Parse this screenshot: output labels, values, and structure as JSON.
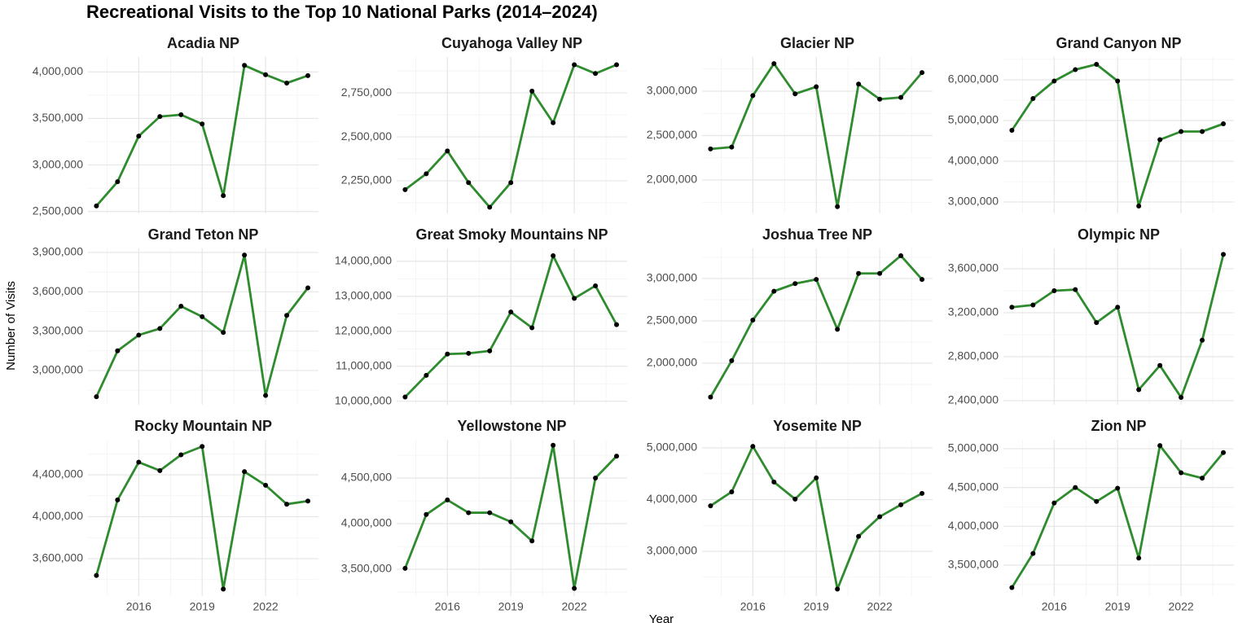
{
  "title": "Recreational Visits to the Top 10 National Parks (2014–2024)",
  "x_label": "Year",
  "y_label": "Number of Visits",
  "chart_data": [
    {
      "type": "line",
      "title": "Acadia NP",
      "x": [
        2014,
        2015,
        2016,
        2017,
        2018,
        2019,
        2020,
        2021,
        2022,
        2023,
        2024
      ],
      "values": [
        2560000,
        2820000,
        3310000,
        3520000,
        3540000,
        3440000,
        2670000,
        4070000,
        3970000,
        3880000,
        3960000
      ],
      "color": "#2e8b2e",
      "point_color": "#000000",
      "xlim": [
        2013.6,
        2024.5
      ],
      "xticks": [
        2016,
        2019,
        2022
      ],
      "ylim": [
        2480000,
        4160000
      ],
      "yticks": [
        {
          "value": 2500000,
          "label": "2,500,000"
        },
        {
          "value": 3000000,
          "label": "3,000,000"
        },
        {
          "value": 3500000,
          "label": "3,500,000"
        },
        {
          "value": 4000000,
          "label": "4,000,000"
        }
      ],
      "grid": true
    },
    {
      "type": "line",
      "title": "Cuyahoga Valley NP",
      "x": [
        2014,
        2015,
        2016,
        2017,
        2018,
        2019,
        2020,
        2021,
        2022,
        2023,
        2024
      ],
      "values": [
        2200000,
        2290000,
        2420000,
        2240000,
        2100000,
        2240000,
        2760000,
        2580000,
        2910000,
        2860000,
        2910000
      ],
      "color": "#2e8b2e",
      "point_color": "#000000",
      "xlim": [
        2013.6,
        2024.5
      ],
      "xticks": [
        2016,
        2019,
        2022
      ],
      "ylim": [
        2065000,
        2954000
      ],
      "yticks": [
        {
          "value": 2250000,
          "label": "2,250,000"
        },
        {
          "value": 2500000,
          "label": "2,500,000"
        },
        {
          "value": 2750000,
          "label": "2,750,000"
        }
      ],
      "grid": true
    },
    {
      "type": "line",
      "title": "Glacier NP",
      "x": [
        2014,
        2015,
        2016,
        2017,
        2018,
        2019,
        2020,
        2021,
        2022,
        2023,
        2024
      ],
      "values": [
        2350000,
        2370000,
        2950000,
        3310000,
        2970000,
        3050000,
        1700000,
        3080000,
        2910000,
        2930000,
        3210000
      ],
      "color": "#2e8b2e",
      "point_color": "#000000",
      "xlim": [
        2013.6,
        2024.5
      ],
      "xticks": [
        2016,
        2019,
        2022
      ],
      "ylim": [
        1624000,
        3385000
      ],
      "yticks": [
        {
          "value": 2000000,
          "label": "2,000,000"
        },
        {
          "value": 2500000,
          "label": "2,500,000"
        },
        {
          "value": 3000000,
          "label": "3,000,000"
        }
      ],
      "grid": true
    },
    {
      "type": "line",
      "title": "Grand Canyon NP",
      "x": [
        2014,
        2015,
        2016,
        2017,
        2018,
        2019,
        2020,
        2021,
        2022,
        2023,
        2024
      ],
      "values": [
        4760000,
        5540000,
        5970000,
        6250000,
        6380000,
        5970000,
        2900000,
        4530000,
        4730000,
        4730000,
        4920000
      ],
      "color": "#2e8b2e",
      "point_color": "#000000",
      "xlim": [
        2013.6,
        2024.5
      ],
      "xticks": [
        2016,
        2019,
        2022
      ],
      "ylim": [
        2720000,
        6560000
      ],
      "yticks": [
        {
          "value": 3000000,
          "label": "3,000,000"
        },
        {
          "value": 4000000,
          "label": "4,000,000"
        },
        {
          "value": 5000000,
          "label": "5,000,000"
        },
        {
          "value": 6000000,
          "label": "6,000,000"
        }
      ],
      "grid": true
    },
    {
      "type": "line",
      "title": "Grand Teton NP",
      "x": [
        2014,
        2015,
        2016,
        2017,
        2018,
        2019,
        2020,
        2021,
        2022,
        2023,
        2024
      ],
      "values": [
        2800000,
        3150000,
        3270000,
        3320000,
        3490000,
        3410000,
        3290000,
        3880000,
        2810000,
        3420000,
        3630000
      ],
      "color": "#2e8b2e",
      "point_color": "#000000",
      "xlim": [
        2013.6,
        2024.5
      ],
      "xticks": [
        2016,
        2019,
        2022
      ],
      "ylim": [
        2739000,
        3931000
      ],
      "yticks": [
        {
          "value": 3000000,
          "label": "3,000,000"
        },
        {
          "value": 3300000,
          "label": "3,300,000"
        },
        {
          "value": 3600000,
          "label": "3,600,000"
        },
        {
          "value": 3900000,
          "label": "3,900,000"
        }
      ],
      "grid": true
    },
    {
      "type": "line",
      "title": "Great Smoky Mountains NP",
      "x": [
        2014,
        2015,
        2016,
        2017,
        2018,
        2019,
        2020,
        2021,
        2022,
        2023,
        2024
      ],
      "values": [
        10120000,
        10740000,
        11350000,
        11370000,
        11440000,
        12550000,
        12100000,
        14160000,
        12940000,
        13300000,
        12190000
      ],
      "color": "#2e8b2e",
      "point_color": "#000000",
      "xlim": [
        2013.6,
        2024.5
      ],
      "xticks": [
        2016,
        2019,
        2022
      ],
      "ylim": [
        9900000,
        14370000
      ],
      "yticks": [
        {
          "value": 10000000,
          "label": "10,000,000"
        },
        {
          "value": 11000000,
          "label": "11,000,000"
        },
        {
          "value": 12000000,
          "label": "12,000,000"
        },
        {
          "value": 13000000,
          "label": "13,000,000"
        },
        {
          "value": 14000000,
          "label": "14,000,000"
        }
      ],
      "grid": true
    },
    {
      "type": "line",
      "title": "Joshua Tree NP",
      "x": [
        2014,
        2015,
        2016,
        2017,
        2018,
        2019,
        2020,
        2021,
        2022,
        2023,
        2024
      ],
      "values": [
        1600000,
        2030000,
        2510000,
        2850000,
        2940000,
        2990000,
        2400000,
        3060000,
        3060000,
        3270000,
        2990000
      ],
      "color": "#2e8b2e",
      "point_color": "#000000",
      "xlim": [
        2013.6,
        2024.5
      ],
      "xticks": [
        2016,
        2019,
        2022
      ],
      "ylim": [
        1510000,
        3356000
      ],
      "yticks": [
        {
          "value": 2000000,
          "label": "2,000,000"
        },
        {
          "value": 2500000,
          "label": "2,500,000"
        },
        {
          "value": 3000000,
          "label": "3,000,000"
        }
      ],
      "grid": true
    },
    {
      "type": "line",
      "title": "Olympic NP",
      "x": [
        2014,
        2015,
        2016,
        2017,
        2018,
        2019,
        2020,
        2021,
        2022,
        2023,
        2024
      ],
      "values": [
        3250000,
        3270000,
        3400000,
        3410000,
        3110000,
        3250000,
        2500000,
        2720000,
        2430000,
        2950000,
        3730000
      ],
      "color": "#2e8b2e",
      "point_color": "#000000",
      "xlim": [
        2013.6,
        2024.5
      ],
      "xticks": [
        2016,
        2019,
        2022
      ],
      "ylim": [
        2363000,
        3785000
      ],
      "yticks": [
        {
          "value": 2400000,
          "label": "2,400,000"
        },
        {
          "value": 2800000,
          "label": "2,800,000"
        },
        {
          "value": 3200000,
          "label": "3,200,000"
        },
        {
          "value": 3600000,
          "label": "3,600,000"
        }
      ],
      "grid": true
    },
    {
      "type": "line",
      "title": "Rocky Mountain NP",
      "x": [
        2014,
        2015,
        2016,
        2017,
        2018,
        2019,
        2020,
        2021,
        2022,
        2023,
        2024
      ],
      "values": [
        3440000,
        4160000,
        4520000,
        4440000,
        4590000,
        4670000,
        3310000,
        4430000,
        4300000,
        4120000,
        4150000
      ],
      "color": "#2e8b2e",
      "point_color": "#000000",
      "xlim": [
        2013.6,
        2024.5
      ],
      "xticks": [
        2016,
        2019,
        2022
      ],
      "ylim": [
        3243000,
        4734000
      ],
      "yticks": [
        {
          "value": 3600000,
          "label": "3,600,000"
        },
        {
          "value": 4000000,
          "label": "4,000,000"
        },
        {
          "value": 4400000,
          "label": "4,400,000"
        }
      ],
      "grid": true
    },
    {
      "type": "line",
      "title": "Yellowstone NP",
      "x": [
        2014,
        2015,
        2016,
        2017,
        2018,
        2019,
        2020,
        2021,
        2022,
        2023,
        2024
      ],
      "values": [
        3510000,
        4100000,
        4260000,
        4120000,
        4120000,
        4020000,
        3810000,
        4860000,
        3290000,
        4500000,
        4740000
      ],
      "color": "#2e8b2e",
      "point_color": "#000000",
      "xlim": [
        2013.6,
        2024.5
      ],
      "xticks": [
        2016,
        2019,
        2022
      ],
      "ylim": [
        3205000,
        4920000
      ],
      "yticks": [
        {
          "value": 3500000,
          "label": "3,500,000"
        },
        {
          "value": 4000000,
          "label": "4,000,000"
        },
        {
          "value": 4500000,
          "label": "4,500,000"
        }
      ],
      "grid": true
    },
    {
      "type": "line",
      "title": "Yosemite NP",
      "x": [
        2014,
        2015,
        2016,
        2017,
        2018,
        2019,
        2020,
        2021,
        2022,
        2023,
        2024
      ],
      "values": [
        3880000,
        4150000,
        5030000,
        4340000,
        4010000,
        4420000,
        2270000,
        3290000,
        3670000,
        3900000,
        4120000
      ],
      "color": "#2e8b2e",
      "point_color": "#000000",
      "xlim": [
        2013.6,
        2024.5
      ],
      "xticks": [
        2016,
        2019,
        2022
      ],
      "ylim": [
        2134000,
        5157000
      ],
      "yticks": [
        {
          "value": 3000000,
          "label": "3,000,000"
        },
        {
          "value": 4000000,
          "label": "4,000,000"
        },
        {
          "value": 5000000,
          "label": "5,000,000"
        }
      ],
      "grid": true
    },
    {
      "type": "line",
      "title": "Zion NP",
      "x": [
        2014,
        2015,
        2016,
        2017,
        2018,
        2019,
        2020,
        2021,
        2022,
        2023,
        2024
      ],
      "values": [
        3210000,
        3650000,
        4300000,
        4500000,
        4320000,
        4490000,
        3590000,
        5040000,
        4690000,
        4620000,
        4950000
      ],
      "color": "#2e8b2e",
      "point_color": "#000000",
      "xlim": [
        2013.6,
        2024.5
      ],
      "xticks": [
        2016,
        2019,
        2022
      ],
      "ylim": [
        3100000,
        5115000
      ],
      "yticks": [
        {
          "value": 3500000,
          "label": "3,500,000"
        },
        {
          "value": 4000000,
          "label": "4,000,000"
        },
        {
          "value": 4500000,
          "label": "4,500,000"
        },
        {
          "value": 5000000,
          "label": "5,000,000"
        }
      ],
      "grid": true
    }
  ]
}
